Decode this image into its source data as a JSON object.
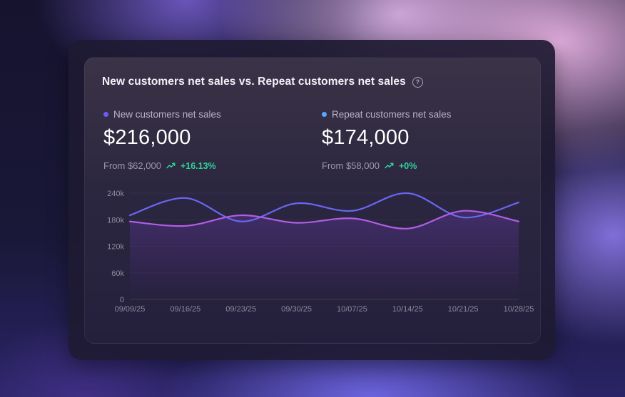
{
  "card": {
    "title": "New customers net sales vs. Repeat customers net sales",
    "help_icon": "help-circle-icon"
  },
  "metrics": [
    {
      "label": "New customers net sales",
      "value": "$216,000",
      "from": "From $62,000",
      "change": "+16.13%",
      "color": "#6b5cf5"
    },
    {
      "label": "Repeat customers net sales",
      "value": "$174,000",
      "from": "From $58,000",
      "change": "+0%",
      "color": "#5aa7ff"
    }
  ],
  "colors": {
    "positive_change": "#2fd39a",
    "series_blue": "#6a66f2",
    "series_purple": "#b15de6"
  },
  "chart_data": {
    "type": "line",
    "title": "New customers net sales vs. Repeat customers net sales",
    "x": [
      "09/09/25",
      "09/16/25",
      "09/23/25",
      "09/30/25",
      "10/07/25",
      "10/14/25",
      "10/21/25",
      "10/28/25"
    ],
    "x_positions": [
      0,
      7,
      14,
      21,
      28,
      35,
      42,
      49
    ],
    "y_ticks": [
      "0",
      "60k",
      "120k",
      "180k",
      "240k"
    ],
    "y_tick_values": [
      0,
      60000,
      120000,
      180000,
      240000
    ],
    "ylim": [
      0,
      240000
    ],
    "grid": "horizontal",
    "series": [
      {
        "color": "#6a66f2",
        "points": [
          [
            0,
            190000
          ],
          [
            7,
            229000
          ],
          [
            14,
            176000
          ],
          [
            21,
            217000
          ],
          [
            28,
            200000
          ],
          [
            35,
            240000
          ],
          [
            42,
            185000
          ],
          [
            49,
            219000
          ]
        ]
      },
      {
        "color": "#b15de6",
        "points": [
          [
            0,
            176000
          ],
          [
            7,
            166000
          ],
          [
            14,
            190000
          ],
          [
            21,
            173000
          ],
          [
            28,
            183000
          ],
          [
            35,
            160000
          ],
          [
            42,
            200000
          ],
          [
            49,
            176000
          ]
        ]
      }
    ]
  }
}
